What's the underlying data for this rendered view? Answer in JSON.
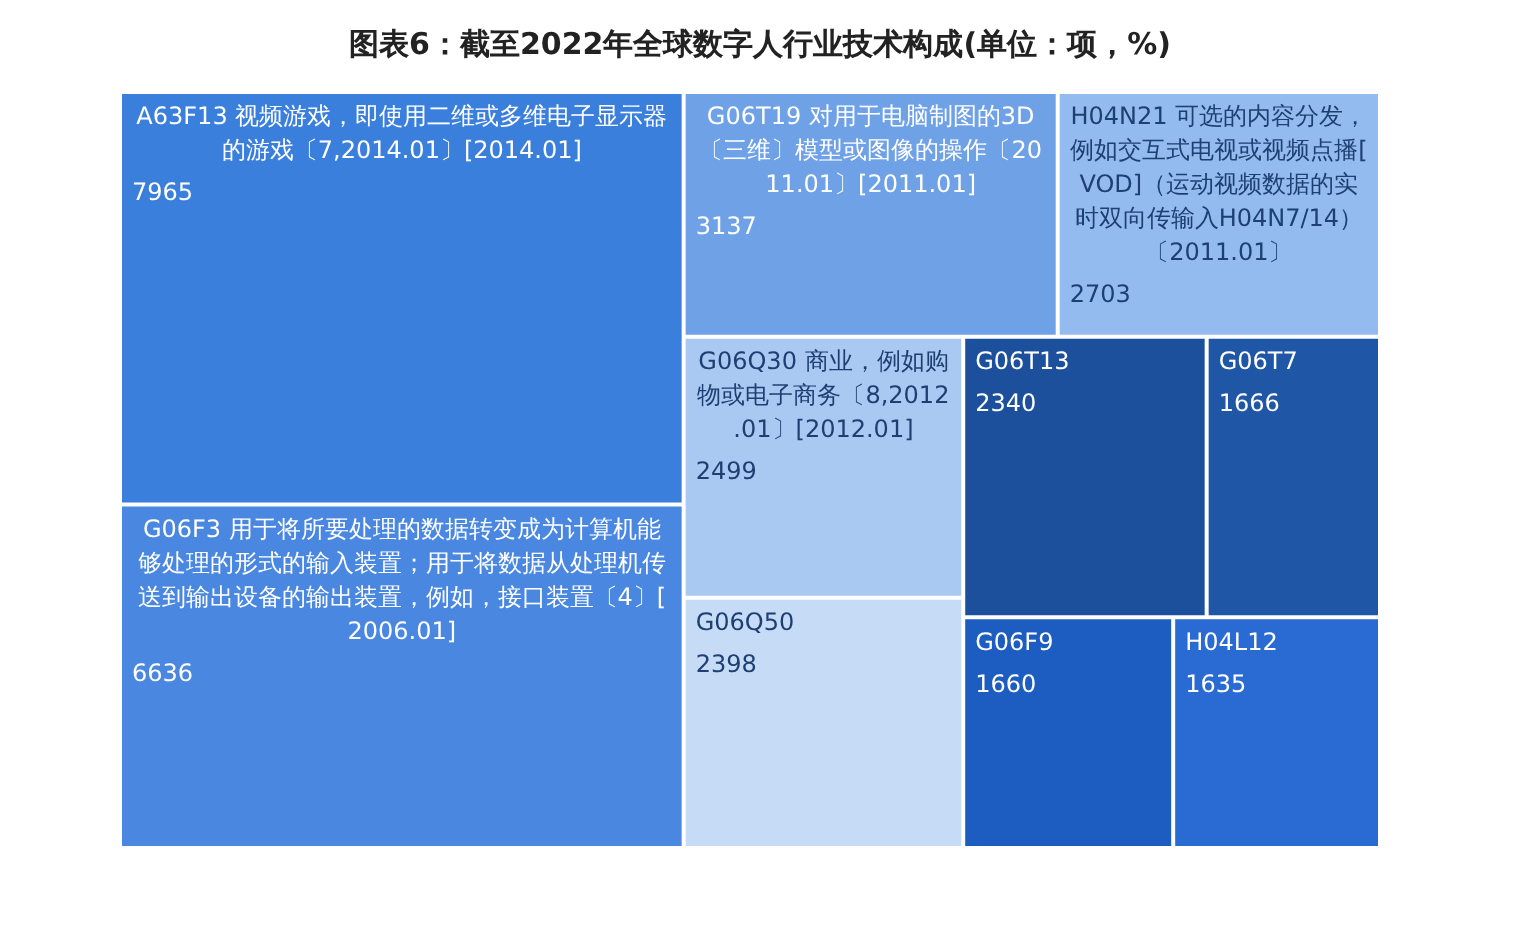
{
  "chart_data": {
    "type": "other",
    "title": "图表6：截至2022年全球数字人行业技术构成(单位：项，%)",
    "categories": [
      "A63F13 视频游戏，即使用二维或多维电子显示器的游戏〔7,2014.01〕[2014.01]",
      "G06F3 用于将所要处理的数据转变成为计算机能够处理的形式的输入装置；用于将数据从处理机传送到输出设备的输出装置，例如，接口装置〔4〕[2006.01]",
      "G06T19 对用于电脑制图的3D〔三维〕模型或图像的操作〔2011.01〕[2011.01]",
      "H04N21 可选的内容分发，例如交互式电视或视频点播[VOD]（运动视频数据的实时双向传输入H04N7/14）〔2011.01〕",
      "G06Q30 商业，例如购物或电子商务〔8,2012.01〕[2012.01]",
      "G06Q50",
      "G06T13",
      "G06T7",
      "G06F9",
      "H04L12"
    ],
    "values": [
      7965,
      6636,
      3137,
      2703,
      2499,
      2398,
      2340,
      1666,
      1660,
      1635
    ],
    "colors": [
      "#3b7fdc",
      "#4a87e0",
      "#6fa1e7",
      "#93bbf0",
      "#a9c9f3",
      "#c5dbf6",
      "#1c4f9c",
      "#1f56a6",
      "#1d5cc0",
      "#2a6ad3"
    ],
    "data_labels": true
  }
}
